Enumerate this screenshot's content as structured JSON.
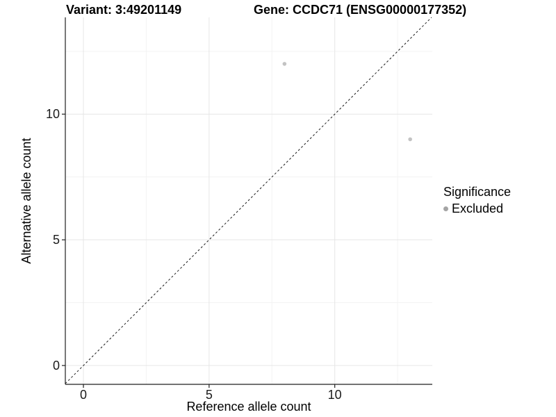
{
  "header": {
    "variant_title": "Variant: 3:49201149",
    "gene_title": "Gene: CCDC71 (ENSG00000177352)"
  },
  "chart_data": {
    "type": "scatter",
    "xlabel": "Reference allele count",
    "ylabel": "Alternative allele count",
    "xlim": [
      -0.72,
      13.88
    ],
    "ylim": [
      -0.75,
      13.85
    ],
    "x_major_ticks": [
      0,
      5,
      10
    ],
    "x_minor_ticks": [
      2.5,
      7.5,
      12.5
    ],
    "y_major_ticks": [
      0,
      5,
      10
    ],
    "y_minor_ticks": [
      2.5,
      7.5,
      12.5
    ],
    "grid": "major+minor",
    "identity_line": {
      "type": "abline",
      "slope": 1,
      "intercept": 0,
      "style": "dashed",
      "color": "#1a1a1a"
    },
    "series": [
      {
        "name": "Excluded",
        "marker": "circle",
        "color": "#c3c3c3",
        "point_radius": 2.8,
        "points": [
          {
            "x": 8,
            "y": 12
          },
          {
            "x": 13,
            "y": 9
          }
        ]
      }
    ],
    "legend": {
      "title": "Significance",
      "position": "right",
      "items": [
        {
          "label": "Excluded",
          "color": "#a4a4a4",
          "marker": "circle"
        }
      ]
    },
    "theme": {
      "background": "#ffffff",
      "grid_major": "#e6e6e6",
      "grid_minor": "#f3f3f3",
      "axis_line": "#1f1f1f",
      "text": "#1a1a1a"
    }
  }
}
